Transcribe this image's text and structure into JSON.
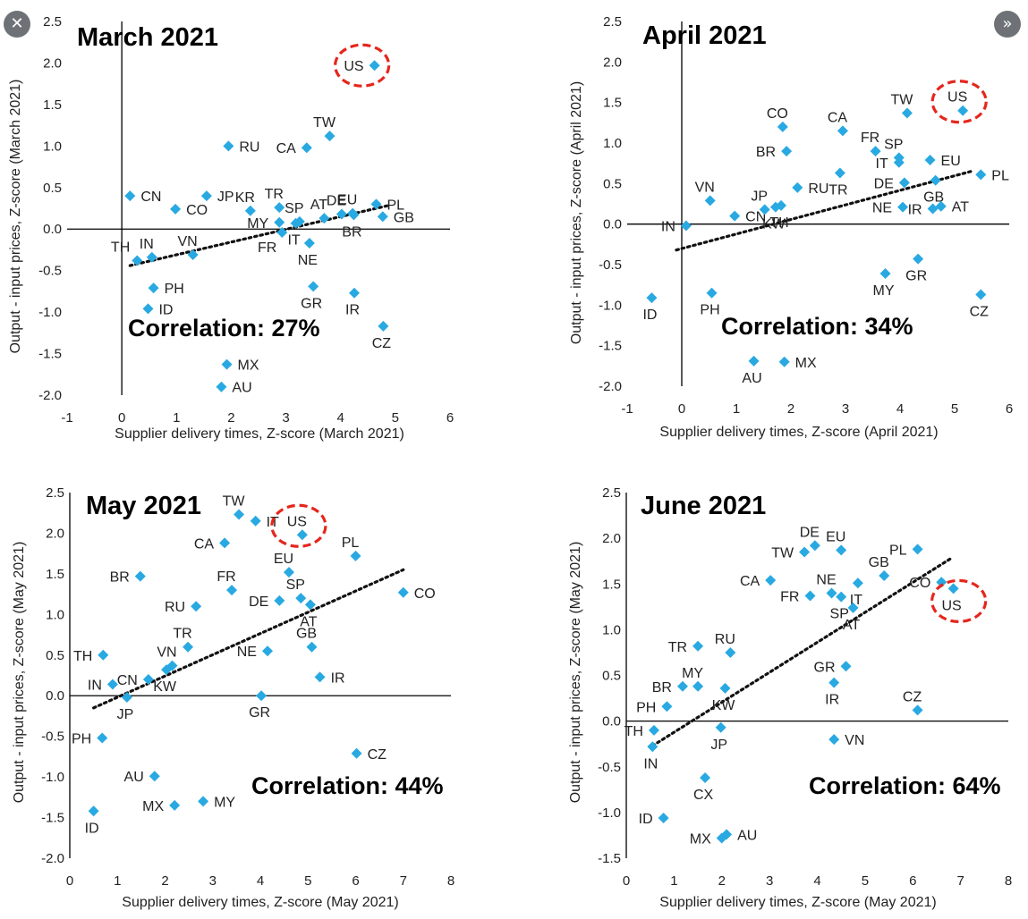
{
  "controls": {
    "close_icon": "✕",
    "next_icon": "»"
  },
  "style": {
    "marker_color": "#29A9E1",
    "trend_color": "#111111",
    "highlight_color": "#E5261C"
  },
  "chart_data": [
    {
      "type": "scatter",
      "title": "March 2021",
      "xlabel": "Supplier delivery times, Z-score (March 2021)",
      "ylabel": "Output - input prices, Z-score (March 2021)",
      "xlim": [
        -1,
        6
      ],
      "ylim": [
        -2.0,
        2.5
      ],
      "xticks": [
        "-1",
        "0",
        "1",
        "2",
        "3",
        "4",
        "5",
        "6"
      ],
      "yticks": [
        "2.5",
        "2.0",
        "1.5",
        "1.0",
        "0.5",
        "0.0",
        "-0.5",
        "-1.0",
        "-1.5",
        "-2.0"
      ],
      "annotation": "Correlation: 27%",
      "trendline": [
        [
          0.15,
          -0.44
        ],
        [
          4.85,
          0.28
        ]
      ],
      "highlight": "US",
      "points": [
        {
          "label": "US",
          "x": 4.62,
          "y": 1.97
        },
        {
          "label": "TW",
          "x": 3.8,
          "y": 1.12
        },
        {
          "label": "CA",
          "x": 3.38,
          "y": 0.98
        },
        {
          "label": "RU",
          "x": 1.95,
          "y": 1.0
        },
        {
          "label": "CN",
          "x": 0.15,
          "y": 0.4
        },
        {
          "label": "CO",
          "x": 0.98,
          "y": 0.24
        },
        {
          "label": "JP",
          "x": 1.55,
          "y": 0.4
        },
        {
          "label": "KR",
          "x": 2.35,
          "y": 0.22
        },
        {
          "label": "TR",
          "x": 2.88,
          "y": 0.26
        },
        {
          "label": "SP",
          "x": 3.25,
          "y": 0.09
        },
        {
          "label": "AT",
          "x": 3.7,
          "y": 0.13
        },
        {
          "label": "DE",
          "x": 4.02,
          "y": 0.18
        },
        {
          "label": "EU",
          "x": 4.22,
          "y": 0.19
        },
        {
          "label": "PL",
          "x": 4.65,
          "y": 0.3
        },
        {
          "label": "GB",
          "x": 4.77,
          "y": 0.15
        },
        {
          "label": "MY",
          "x": 2.88,
          "y": 0.08
        },
        {
          "label": "IT",
          "x": 3.18,
          "y": 0.07
        },
        {
          "label": "FR",
          "x": 2.93,
          "y": -0.04
        },
        {
          "label": "NE",
          "x": 3.43,
          "y": -0.17
        },
        {
          "label": "BR",
          "x": 4.24,
          "y": 0.17
        },
        {
          "label": "TH",
          "x": 0.28,
          "y": -0.38
        },
        {
          "label": "IN",
          "x": 0.55,
          "y": -0.34
        },
        {
          "label": "VN",
          "x": 1.3,
          "y": -0.31
        },
        {
          "label": "PH",
          "x": 0.58,
          "y": -0.71
        },
        {
          "label": "ID",
          "x": 0.48,
          "y": -0.96
        },
        {
          "label": "GR",
          "x": 3.5,
          "y": -0.69
        },
        {
          "label": "IR",
          "x": 4.25,
          "y": -0.77
        },
        {
          "label": "CZ",
          "x": 4.78,
          "y": -1.17
        },
        {
          "label": "MX",
          "x": 1.92,
          "y": -1.63
        },
        {
          "label": "AU",
          "x": 1.82,
          "y": -1.9
        }
      ]
    },
    {
      "type": "scatter",
      "title": "April 2021",
      "xlabel": "Supplier delivery times, Z-score (April 2021)",
      "ylabel": "Output - input prices, Z-score (April 2021)",
      "xlim": [
        -1,
        6
      ],
      "ylim": [
        -2.0,
        2.5
      ],
      "xticks": [
        "-1",
        "0",
        "1",
        "2",
        "3",
        "4",
        "5",
        "6"
      ],
      "yticks": [
        "2.5",
        "2.0",
        "1.5",
        "1.0",
        "0.5",
        "0.0",
        "-0.5",
        "-1.0",
        "-1.5",
        "-2.0"
      ],
      "annotation": "Correlation: 34%",
      "trendline": [
        [
          -0.1,
          -0.32
        ],
        [
          5.3,
          0.65
        ]
      ],
      "highlight": "US",
      "points": [
        {
          "label": "US",
          "x": 5.15,
          "y": 1.4
        },
        {
          "label": "TW",
          "x": 4.13,
          "y": 1.37
        },
        {
          "label": "CO",
          "x": 1.85,
          "y": 1.2
        },
        {
          "label": "CA",
          "x": 2.95,
          "y": 1.15
        },
        {
          "label": "BR",
          "x": 1.92,
          "y": 0.9
        },
        {
          "label": "FR",
          "x": 3.55,
          "y": 0.9
        },
        {
          "label": "SP",
          "x": 3.98,
          "y": 0.82
        },
        {
          "label": "EU",
          "x": 4.55,
          "y": 0.79
        },
        {
          "label": "IT",
          "x": 3.98,
          "y": 0.76
        },
        {
          "label": "RU",
          "x": 2.12,
          "y": 0.45
        },
        {
          "label": "PL",
          "x": 5.48,
          "y": 0.61
        },
        {
          "label": "TR",
          "x": 2.9,
          "y": 0.63
        },
        {
          "label": "DE",
          "x": 4.08,
          "y": 0.51
        },
        {
          "label": "GB",
          "x": 4.65,
          "y": 0.54
        },
        {
          "label": "VN",
          "x": 0.52,
          "y": 0.29
        },
        {
          "label": "CN",
          "x": 0.97,
          "y": 0.1
        },
        {
          "label": "JP",
          "x": 1.52,
          "y": 0.18
        },
        {
          "label": "TH",
          "x": 1.82,
          "y": 0.23
        },
        {
          "label": "NE",
          "x": 4.05,
          "y": 0.21
        },
        {
          "label": "IR",
          "x": 4.6,
          "y": 0.19
        },
        {
          "label": "AT",
          "x": 4.75,
          "y": 0.22
        },
        {
          "label": "KW",
          "x": 1.72,
          "y": 0.21
        },
        {
          "label": "IN",
          "x": 0.08,
          "y": -0.02
        },
        {
          "label": "GR",
          "x": 4.33,
          "y": -0.43
        },
        {
          "label": "MY",
          "x": 3.73,
          "y": -0.61
        },
        {
          "label": "ID",
          "x": -0.55,
          "y": -0.91
        },
        {
          "label": "PH",
          "x": 0.55,
          "y": -0.85
        },
        {
          "label": "CZ",
          "x": 5.48,
          "y": -0.87
        },
        {
          "label": "AU",
          "x": 1.32,
          "y": -1.69
        },
        {
          "label": "MX",
          "x": 1.88,
          "y": -1.7
        }
      ]
    },
    {
      "type": "scatter",
      "title": "May 2021",
      "xlabel": "Supplier delivery times, Z-score (May 2021)",
      "ylabel": "Output - input prices, Z-score (May 2021)",
      "xlim": [
        0,
        8
      ],
      "ylim": [
        -2.0,
        2.5
      ],
      "xticks": [
        "0",
        "1",
        "2",
        "3",
        "4",
        "5",
        "6",
        "7",
        "8"
      ],
      "yticks": [
        "2.5",
        "2.0",
        "1.5",
        "1.0",
        "0.5",
        "0.0",
        "-0.5",
        "-1.0",
        "-1.5",
        "-2.0"
      ],
      "annotation": "Correlation: 44%",
      "trendline": [
        [
          0.5,
          -0.15
        ],
        [
          7.0,
          1.55
        ]
      ],
      "highlight": "US",
      "points": [
        {
          "label": "TW",
          "x": 3.55,
          "y": 2.23
        },
        {
          "label": "IT",
          "x": 3.9,
          "y": 2.15
        },
        {
          "label": "US",
          "x": 4.88,
          "y": 1.98
        },
        {
          "label": "CA",
          "x": 3.25,
          "y": 1.88
        },
        {
          "label": "PL",
          "x": 6.0,
          "y": 1.72
        },
        {
          "label": "EU",
          "x": 4.6,
          "y": 1.52
        },
        {
          "label": "BR",
          "x": 1.48,
          "y": 1.47
        },
        {
          "label": "FR",
          "x": 3.4,
          "y": 1.3
        },
        {
          "label": "CO",
          "x": 7.0,
          "y": 1.27
        },
        {
          "label": "SP",
          "x": 4.85,
          "y": 1.2
        },
        {
          "label": "DE",
          "x": 4.4,
          "y": 1.17
        },
        {
          "label": "AT",
          "x": 5.05,
          "y": 1.12
        },
        {
          "label": "RU",
          "x": 2.65,
          "y": 1.1
        },
        {
          "label": "TR",
          "x": 2.48,
          "y": 0.6
        },
        {
          "label": "GB",
          "x": 5.08,
          "y": 0.6
        },
        {
          "label": "NE",
          "x": 4.15,
          "y": 0.55
        },
        {
          "label": "TH",
          "x": 0.7,
          "y": 0.5
        },
        {
          "label": "VN",
          "x": 2.15,
          "y": 0.37
        },
        {
          "label": "KW",
          "x": 2.03,
          "y": 0.32
        },
        {
          "label": "CN",
          "x": 1.65,
          "y": 0.2
        },
        {
          "label": "IR",
          "x": 5.25,
          "y": 0.23
        },
        {
          "label": "IN",
          "x": 0.9,
          "y": 0.14
        },
        {
          "label": "JP",
          "x": 1.2,
          "y": -0.02
        },
        {
          "label": "GR",
          "x": 4.02,
          "y": 0.0
        },
        {
          "label": "PH",
          "x": 0.68,
          "y": -0.52
        },
        {
          "label": "CZ",
          "x": 6.02,
          "y": -0.71
        },
        {
          "label": "AU",
          "x": 1.78,
          "y": -0.99
        },
        {
          "label": "MX",
          "x": 2.2,
          "y": -1.35
        },
        {
          "label": "MY",
          "x": 2.8,
          "y": -1.3
        },
        {
          "label": "ID",
          "x": 0.5,
          "y": -1.42
        }
      ]
    },
    {
      "type": "scatter",
      "title": "June 2021",
      "xlabel": "Supplier delivery times, Z-score (May 2021)",
      "ylabel": "Output - input prices, Z-score (May 2021)",
      "xlim": [
        0,
        8
      ],
      "ylim": [
        -1.5,
        2.5
      ],
      "xticks": [
        "0",
        "1",
        "2",
        "3",
        "4",
        "5",
        "6",
        "7",
        "8"
      ],
      "yticks": [
        "2.5",
        "2.0",
        "1.5",
        "1.0",
        "0.5",
        "0.0",
        "-0.5",
        "-1.0",
        "-1.5"
      ],
      "annotation": "Correlation: 64%",
      "trendline": [
        [
          0.55,
          -0.27
        ],
        [
          6.8,
          1.78
        ]
      ],
      "highlight": "US",
      "points": [
        {
          "label": "DE",
          "x": 3.95,
          "y": 1.92
        },
        {
          "label": "EU",
          "x": 4.5,
          "y": 1.87
        },
        {
          "label": "TW",
          "x": 3.73,
          "y": 1.85
        },
        {
          "label": "PL",
          "x": 6.1,
          "y": 1.88
        },
        {
          "label": "GB",
          "x": 5.4,
          "y": 1.59
        },
        {
          "label": "CA",
          "x": 3.02,
          "y": 1.54
        },
        {
          "label": "IT",
          "x": 4.85,
          "y": 1.51
        },
        {
          "label": "CO",
          "x": 6.6,
          "y": 1.52
        },
        {
          "label": "US",
          "x": 6.85,
          "y": 1.45
        },
        {
          "label": "NE",
          "x": 4.3,
          "y": 1.4
        },
        {
          "label": "FR",
          "x": 3.85,
          "y": 1.37
        },
        {
          "label": "SP",
          "x": 4.5,
          "y": 1.36
        },
        {
          "label": "AT",
          "x": 4.75,
          "y": 1.24
        },
        {
          "label": "TR",
          "x": 1.5,
          "y": 0.82
        },
        {
          "label": "RU",
          "x": 2.18,
          "y": 0.75
        },
        {
          "label": "GR",
          "x": 4.6,
          "y": 0.6
        },
        {
          "label": "IR",
          "x": 4.35,
          "y": 0.42
        },
        {
          "label": "BR",
          "x": 1.18,
          "y": 0.38
        },
        {
          "label": "MY",
          "x": 1.5,
          "y": 0.38
        },
        {
          "label": "KW",
          "x": 2.07,
          "y": 0.36
        },
        {
          "label": "PH",
          "x": 0.85,
          "y": 0.16
        },
        {
          "label": "CZ",
          "x": 6.1,
          "y": 0.12
        },
        {
          "label": "TH",
          "x": 0.58,
          "y": -0.1
        },
        {
          "label": "JP",
          "x": 1.98,
          "y": -0.07
        },
        {
          "label": "IN",
          "x": 0.55,
          "y": -0.28
        },
        {
          "label": "VN",
          "x": 4.35,
          "y": -0.2
        },
        {
          "label": "CX",
          "x": 1.65,
          "y": -0.62
        },
        {
          "label": "ID",
          "x": 0.78,
          "y": -1.06
        },
        {
          "label": "AU",
          "x": 2.1,
          "y": -1.24
        },
        {
          "label": "MX",
          "x": 2.0,
          "y": -1.28
        }
      ]
    }
  ]
}
